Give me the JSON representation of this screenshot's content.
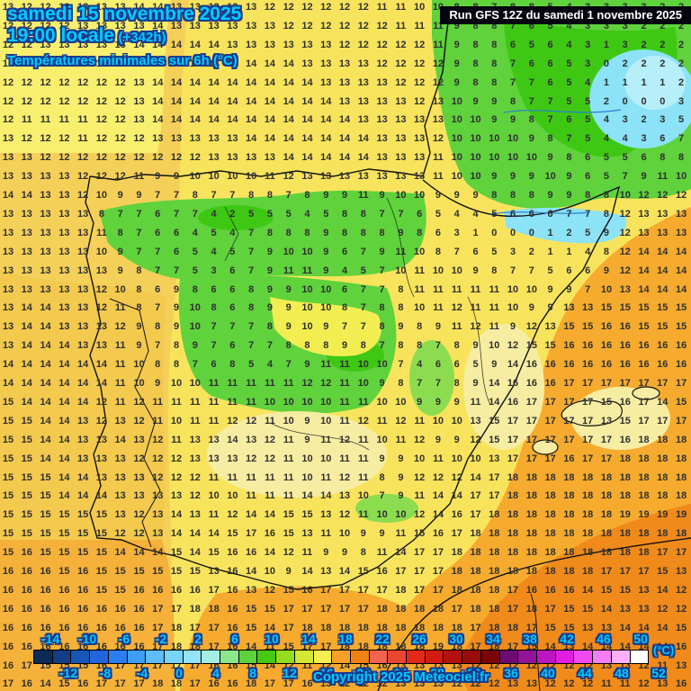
{
  "header": {
    "date_line": "samedi 15 novembre 2025",
    "time_line": "19:00 locale",
    "offset": "(+342h)",
    "parameter": "Températures minimales sur 6h (°C)",
    "run_info": "Run GFS 12Z du samedi 1 novembre 2025"
  },
  "copyright": "Copyright 2025 Meteociel.fr",
  "palette": {
    "cyan_text": "#00ccff",
    "outline": "#1a3a8c",
    "base": "#f8e45c",
    "pale_yellow": "#f8ef6e",
    "yellow": "#f2ee52",
    "cream": "#f7eda2",
    "amber_sea": "#f5d058",
    "amber_deep": "#f3c94e",
    "orange": "#f6ab2e",
    "orange_deep": "#f08a1a",
    "orange_sw": "#f5b13a",
    "green": "#5fd23c",
    "green_dark": "#3ec814",
    "green_pale": "#8cdc50",
    "cyan_patch": "#8ce2f6",
    "cyan_light": "#b6eef9",
    "coast": "#111111",
    "river": "#2a7fd4"
  },
  "legend": {
    "unit": "(°C)",
    "top_labels": [
      "-14",
      "-10",
      "-6",
      "-2",
      "2",
      "6",
      "10",
      "14",
      "18",
      "22",
      "26",
      "30",
      "34",
      "38",
      "42",
      "46",
      "50"
    ],
    "bottom_labels": [
      "-12",
      "-8",
      "-4",
      "0",
      "4",
      "8",
      "12",
      "16",
      "20",
      "24",
      "28",
      "32",
      "36",
      "40",
      "44",
      "48",
      "52"
    ],
    "colors": [
      "#0d2b57",
      "#123f85",
      "#1857b8",
      "#2266dd",
      "#2b7ef0",
      "#3f9df5",
      "#5ebcf8",
      "#79d4fa",
      "#93e3f7",
      "#a5eee3",
      "#8ce68c",
      "#5cd23c",
      "#46c814",
      "#96dc1e",
      "#d2e832",
      "#f4ee50",
      "#f5a028",
      "#f08214",
      "#f06450",
      "#eb4632",
      "#e62818",
      "#d21c10",
      "#b4120c",
      "#960d0a",
      "#7a0608",
      "#6e0b72",
      "#93139a",
      "#bb16bf",
      "#e01ee0",
      "#ef49ef",
      "#f57df5",
      "#f9b0f9",
      "#ffffff"
    ]
  },
  "grid": {
    "rows": [
      "13 12 12 12 13 13 13 14 14 13 13 13 13 13 12 12 12 12 12 12 11 11 10 10 8 8 7 8 8 5 4 3 3 3 3 2 2",
      "12 12 12 12 13 13 13 13 14 13 13 13 13 13 13 12 12 12 12 12 12 11 11 11 9 8 8 7 6 5 4 3 3 3 2 2 2",
      "12 12 13 13 13 13 13 14 14 14 14 14 13 13 13 13 13 13 12 12 12 12 12 11 9 8 8 6 5 6 4 3 1 3 2 2 2",
      "12 12 13 13 13 13 13 14 14 14 14 14 14 14 14 14 13 13 13 13 12 12 12 12 9 8 8 7 6 6 5 3 0 2 2 2 2",
      "12 12 12 12 12 12 12 13 14 14 14 14 14 14 14 14 14 13 13 13 13 12 12 12 9 8 8 7 7 6 5 4 1 1 1 1 2",
      "12 12 12 12 12 12 12 13 14 14 14 14 14 14 14 14 14 14 13 13 13 13 12 13 10 9 9 8 7 7 5 5 2 0 0 0 3",
      "12 11 11 11 11 12 12 13 14 14 14 14 14 14 14 14 14 14 14 13 13 13 13 13 10 10 9 9 8 7 6 5 4 3 2 3 5",
      "13 12 12 12 11 12 12 12 13 13 13 13 13 14 14 14 14 14 14 14 13 13 13 12 10 10 10 10 9 8 7 5 4 4 3 6 7",
      "13 13 12 12 12 12 12 12 12 12 12 13 13 13 13 14 14 14 14 14 13 13 13 11 10 10 10 10 10 9 8 6 5 5 6 8 8",
      "13 13 13 13 12 12 12 11 9 9 10 10 10 10 11 12 13 13 13 13 13 13 13 11 10 10 9 9 9 10 9 6 5 7 9 11 10",
      "14 14 13 13 12 10 9 9 7 7 8 7 7 8 8 7 8 9 9 11 9 10 10 9 9 9 8 8 8 9 9 8 8 10 12 12 12",
      "13 13 13 13 13 8 7 7 6 7 7 4 2 5 5 5 4 5 8 8 7 7 6 5 4 4 5 6 6 6 7 7 8 12 13 13 13",
      "13 13 13 13 13 11 8 7 6 6 4 5 4 7 8 8 8 9 8 8 8 9 8 6 3 1 0 0 0 1 2 5 9 12 13 13 13",
      "13 13 13 13 13 10 9 7 7 6 5 4 5 7 9 10 10 9 6 7 9 11 10 8 7 6 5 3 2 1 1 4 8 12 14 14 14",
      "13 13 13 13 13 13 9 8 7 7 5 3 6 7 9 11 11 9 4 5 7 10 11 10 10 9 8 7 7 5 6 6 9 12 14 14 14",
      "13 13 13 13 13 12 10 8 6 9 8 6 6 8 9 9 10 10 6 7 7 8 11 11 11 11 11 10 10 9 9 7 10 13 14 14 14",
      "13 14 14 13 13 12 11 8 7 9 10 8 6 8 9 9 10 10 8 7 8 8 10 11 12 11 11 10 9 9 13 13 15 15 15 15 15",
      "13 14 14 13 13 13 12 9 8 9 10 7 7 7 8 9 10 9 7 7 8 9 8 9 11 12 11 9 12 13 15 15 16 16 15 15 15",
      "13 14 14 14 13 13 11 9 7 8 9 7 6 7 7 8 8 8 9 8 7 8 8 7 8 9 10 12 15 15 16 16 16 16 16 16 16",
      "14 14 14 14 14 14 11 10 8 8 7 6 8 5 4 7 9 11 11 10 10 7 4 6 6 5 9 14 16 16 16 16 16 16 16 16 16",
      "14 14 14 14 14 14 11 10 9 10 10 11 11 11 11 11 12 12 11 10 9 8 7 7 8 9 14 16 16 16 17 17 17 17 17 17 17",
      "15 14 14 14 14 12 11 12 11 11 11 11 11 11 10 10 10 10 11 11 10 10 9 9 9 11 14 16 17 17 17 17 15 16 17 14 15",
      "15 15 14 14 13 12 13 12 11 10 11 11 12 12 11 10 9 10 11 12 11 12 11 10 10 13 15 17 17 17 17 17 13 15 17 17 17",
      "15 15 14 14 13 13 14 13 12 11 13 13 14 13 12 11 9 11 12 11 10 11 12 9 9 12 15 17 17 17 17 17 17 16 18 18 18",
      "15 15 14 14 13 13 13 12 12 12 13 13 13 12 12 11 10 10 11 11 9 9 10 11 10 10 13 17 17 17 16 17 17 18 18 18 18",
      "15 15 15 14 14 13 13 13 12 12 12 11 11 11 11 11 10 11 12 11 8 9 12 12 12 14 17 18 18 18 18 18 18 18 18 18 18",
      "15 15 15 14 14 14 13 13 13 13 12 10 10 11 11 11 14 14 13 10 7 9 11 14 14 17 17 18 18 18 18 18 18 18 18 18 18",
      "15 15 15 15 15 15 13 12 13 14 13 11 12 14 14 15 15 13 12 11 10 10 12 14 16 17 18 18 18 18 18 18 18 19 19 19 19",
      "15 15 15 15 15 15 12 12 13 14 14 14 15 17 16 15 13 11 10 9 9 11 15 16 17 18 18 18 18 18 18 18 18 18 18 18 18",
      "15 16 15 15 15 15 14 14 14 15 14 15 16 16 14 12 11 9 9 8 11 14 17 17 18 18 18 18 18 18 18 18 18 18 18 17 17",
      "16 16 16 15 16 15 15 15 15 15 15 13 16 14 10 9 14 13 14 15 16 17 17 17 18 18 18 18 18 18 18 18 17 17 17 15 13",
      "16 16 16 16 16 15 15 16 16 16 16 17 16 13 12 15 16 17 17 17 17 18 17 17 18 18 18 17 16 16 16 14 15 15 13 14 12",
      "16 16 16 16 16 16 16 16 17 17 18 18 16 15 15 17 17 17 17 17 18 18 18 18 17 18 18 17 18 17 15 15 14 13 13 12 12",
      "16 16 16 16 16 16 16 16 17 18 17 17 16 15 14 17 18 18 18 18 18 18 18 18 18 17 18 18 17 15 15 13 13 14 14 14 15",
      "16 16 16 16 16 16 16 16 17 18 18 17 16 14 11 15 17 17 18 18 18 18 18 19 18 17 18 17 15 14 13 14 14 14 14 14 16",
      "16 17 15 15 15 16 17 17 17 17 17 16 16 15 14 12 11 12 14 15 16 13 13 13 13 12 12 12 12 12 12 12 13 13 12 11 13",
      "17 16 14 15 16 17 17 17 18 18 17 16 16 18 17 17 16 13 12 12 12 13 13 13 12 12 12 13 13 12 12 12 11 11 12 13 16"
    ]
  }
}
